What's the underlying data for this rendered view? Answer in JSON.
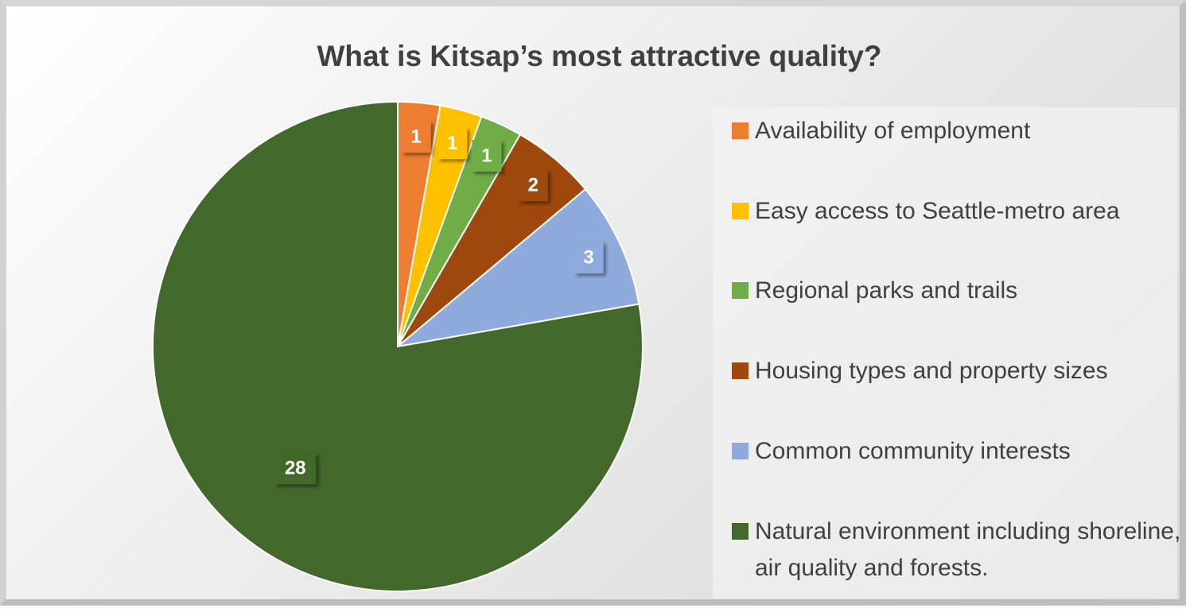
{
  "chart_data": {
    "type": "pie",
    "title": "What is Kitsap’s most attractive quality?",
    "categories": [
      "Availability of employment",
      "Easy access to Seattle-metro area",
      "Regional parks and trails",
      "Housing types and property sizes",
      "Common community interests",
      "Natural environment including shoreline, air quality and forests."
    ],
    "values": [
      1,
      1,
      1,
      2,
      3,
      28
    ],
    "colors": [
      "#ed7d31",
      "#ffc000",
      "#70ad47",
      "#9e480e",
      "#8faadc",
      "#43682b"
    ],
    "legend": "right"
  }
}
